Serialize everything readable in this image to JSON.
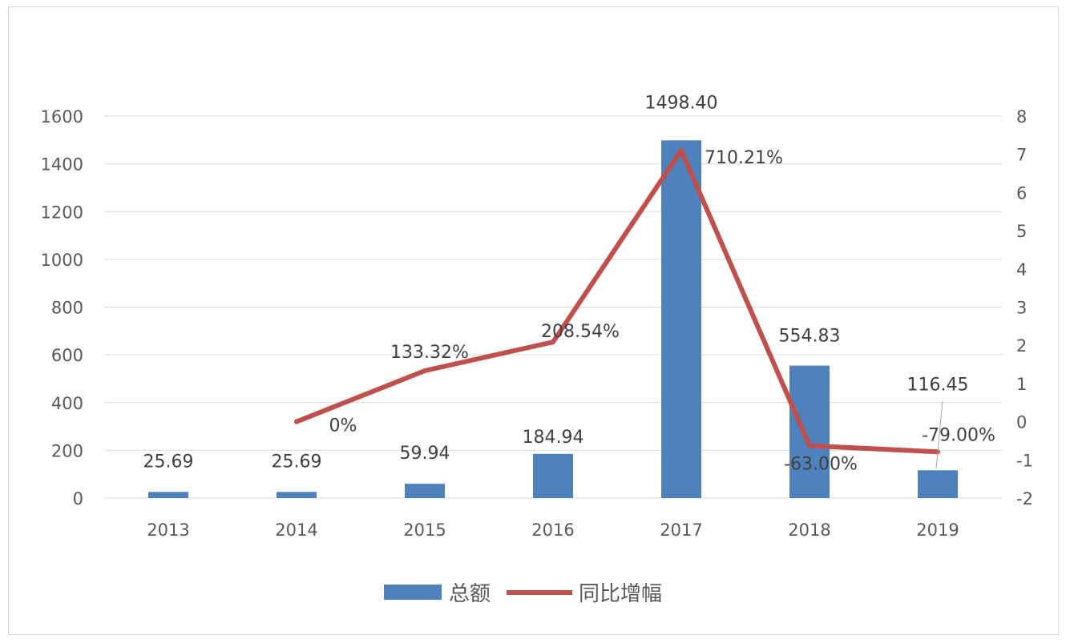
{
  "chart_data": {
    "type": "bar+line",
    "categories": [
      "2013",
      "2014",
      "2015",
      "2016",
      "2017",
      "2018",
      "2019"
    ],
    "series": [
      {
        "name": "总额",
        "type": "bar",
        "axis": "left",
        "color": "#4f81bd",
        "values": [
          25.69,
          25.69,
          59.94,
          184.94,
          1498.4,
          554.83,
          116.45
        ],
        "labels": [
          "25.69",
          "25.69",
          "59.94",
          "184.94",
          "1498.40",
          "554.83",
          "116.45"
        ]
      },
      {
        "name": "同比增幅",
        "type": "line",
        "axis": "right",
        "color": "#c0504d",
        "values": [
          null,
          0,
          1.3332,
          2.0854,
          7.1021,
          -0.63,
          -0.79
        ],
        "labels": [
          "",
          "0%",
          "133.32%",
          "208.54%",
          "710.21%",
          "-63.00%",
          "-79.00%"
        ]
      }
    ],
    "y_left": {
      "min": 0,
      "max": 1600,
      "ticks": [
        "0",
        "200",
        "400",
        "600",
        "800",
        "1000",
        "1200",
        "1400",
        "1600"
      ]
    },
    "y_right": {
      "min": -2,
      "max": 8,
      "ticks": [
        "-2",
        "-1",
        "0",
        "1",
        "2",
        "3",
        "4",
        "5",
        "6",
        "7",
        "8"
      ]
    },
    "grid": true,
    "legend": "bottom",
    "title": ""
  }
}
